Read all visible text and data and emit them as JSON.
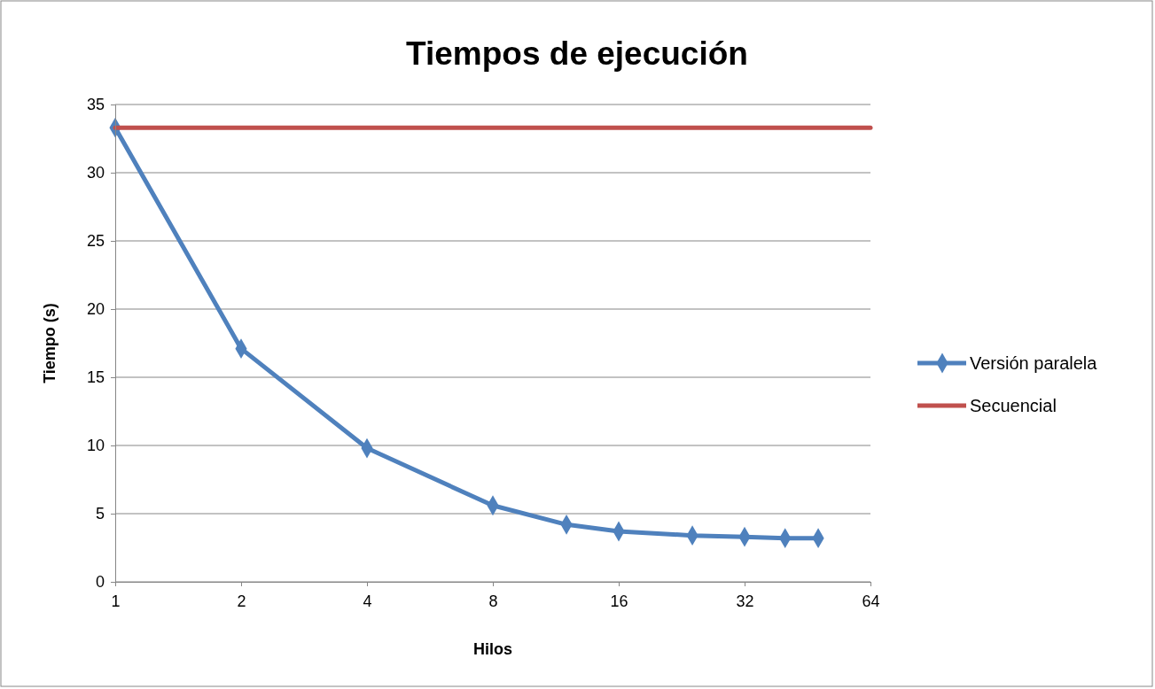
{
  "chart_data": {
    "type": "line",
    "title": "Tiempos de ejecución",
    "xlabel": "Hilos",
    "ylabel": "Tiempo (s)",
    "log": "x",
    "xlim": [
      1,
      64
    ],
    "xticks": [
      1,
      2,
      4,
      8,
      16,
      32,
      64
    ],
    "ylim": [
      0,
      35
    ],
    "yticks": [
      0,
      5,
      10,
      15,
      20,
      25,
      30,
      35
    ],
    "grid": "y",
    "legend": "right",
    "series": [
      {
        "name": "Versión paralela",
        "color": "#4f81bd",
        "marker": "diamond",
        "x": [
          1,
          2,
          4,
          8,
          12,
          16,
          24,
          32,
          40,
          48
        ],
        "values": [
          33.3,
          17.1,
          9.8,
          5.6,
          4.2,
          3.7,
          3.4,
          3.3,
          3.2,
          3.2
        ]
      },
      {
        "name": "Secuencial",
        "color": "#c0504d",
        "marker": "none",
        "x": [
          1,
          64
        ],
        "values": [
          33.3,
          33.3
        ]
      }
    ]
  }
}
